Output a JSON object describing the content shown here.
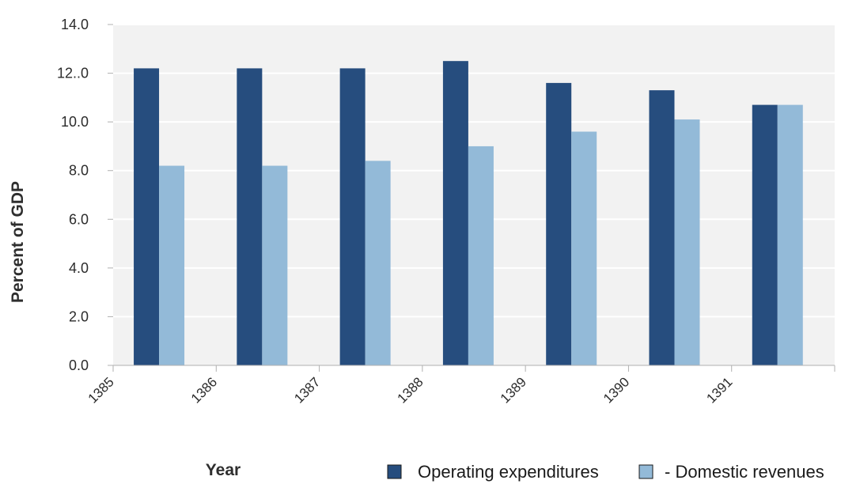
{
  "chart_data": {
    "type": "bar",
    "title": "",
    "xlabel": "Year",
    "ylabel": "Percent of GDP",
    "categories": [
      "1385",
      "1386",
      "1387",
      "1388",
      "1389",
      "1390",
      "1391"
    ],
    "series": [
      {
        "name": "Operating expenditures",
        "color": "#264d7e",
        "values": [
          12.2,
          12.2,
          12.2,
          12.5,
          11.6,
          11.3,
          10.7
        ]
      },
      {
        "name": "- Domestic revenues",
        "color": "#93bad8",
        "values": [
          8.2,
          8.2,
          8.4,
          9.0,
          9.6,
          10.1,
          10.7
        ]
      }
    ],
    "y_ticks": [
      "0.0",
      "2.0",
      "4.0",
      "6.0",
      "8.0",
      "10.0",
      "12..0",
      "14.0"
    ],
    "ylim": [
      0,
      14
    ],
    "grid": true,
    "legend_position": "bottom-right",
    "plot_background": "#f2f2f2",
    "gridline_color": "#ffffff"
  }
}
